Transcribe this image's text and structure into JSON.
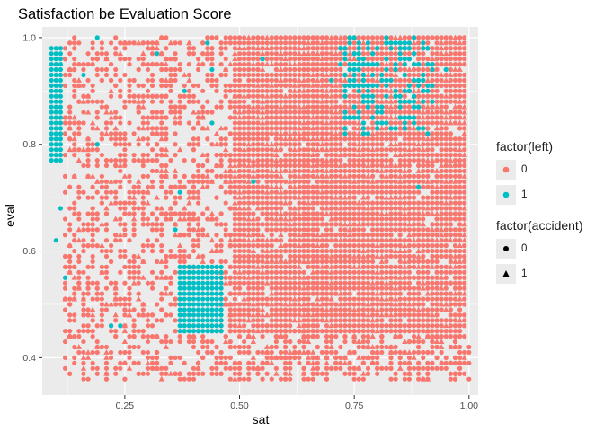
{
  "chart_data": {
    "type": "scatter",
    "title": "Satisfaction be Evaluation Score",
    "xlabel": "sat",
    "ylabel": "eval",
    "xlim": [
      0.07,
      1.02
    ],
    "ylim": [
      0.33,
      1.02
    ],
    "x_ticks": [
      "0.25",
      "0.50",
      "0.75",
      "1.00"
    ],
    "x_tick_values": [
      0.25,
      0.5,
      0.75,
      1.0
    ],
    "y_ticks": [
      "0.4",
      "0.6",
      "0.8",
      "1.0"
    ],
    "y_tick_values": [
      0.4,
      0.6,
      0.8,
      1.0
    ],
    "grid": true,
    "legend_position": "right",
    "colors": {
      "left_0": "#F8766D",
      "left_1": "#00BFC4",
      "panel": "#EBEBEB",
      "grid": "#FFFFFF"
    },
    "legend": {
      "color_title": "factor(left)",
      "color_entries": [
        "0",
        "1"
      ],
      "shape_title": "factor(accident)",
      "shape_entries": [
        "0",
        "1"
      ]
    },
    "series": [
      {
        "left": "0",
        "accident": "0",
        "note_region": [
          [
            0.5,
            1.0
          ],
          [
            0.45,
            1.0
          ]
        ],
        "points_sample": [
          [
            0.5,
            0.5
          ],
          [
            0.6,
            0.7
          ],
          [
            0.7,
            0.9
          ],
          [
            0.8,
            0.6
          ],
          [
            0.9,
            0.45
          ],
          [
            1.0,
            0.8
          ],
          [
            0.15,
            0.9
          ],
          [
            0.2,
            0.6
          ],
          [
            0.3,
            0.4
          ],
          [
            0.4,
            0.8
          ]
        ]
      },
      {
        "left": "0",
        "accident": "1",
        "points_sample": [
          [
            0.55,
            0.6
          ],
          [
            0.65,
            0.85
          ],
          [
            0.75,
            0.55
          ],
          [
            0.85,
            0.75
          ],
          [
            0.95,
            0.5
          ],
          [
            0.25,
            0.7
          ],
          [
            0.35,
            0.95
          ],
          [
            0.18,
            0.38
          ]
        ]
      },
      {
        "left": "1",
        "accident": "0",
        "clusters": [
          {
            "x": [
              0.09,
              0.11
            ],
            "y": [
              0.77,
              0.98
            ]
          },
          {
            "x": [
              0.37,
              0.46
            ],
            "y": [
              0.45,
              0.57
            ]
          },
          {
            "x": [
              0.72,
              0.92
            ],
            "y": [
              0.82,
              1.0
            ]
          }
        ]
      }
    ]
  }
}
